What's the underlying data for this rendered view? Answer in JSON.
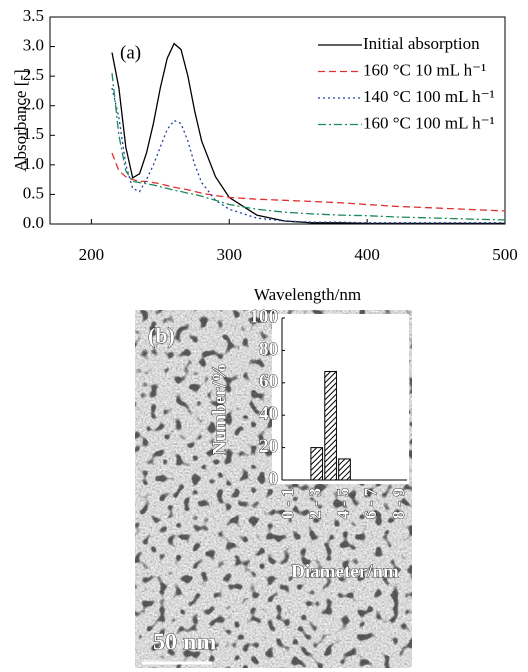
{
  "chart_data": [
    {
      "type": "line",
      "panel_label": "(a)",
      "xlabel": "Wavelength/nm",
      "ylabel": "Absorbance [-]",
      "x": [
        215,
        220,
        225,
        230,
        235,
        240,
        245,
        250,
        255,
        260,
        265,
        270,
        275,
        280,
        290,
        300,
        320,
        340,
        360,
        380,
        400,
        420,
        450,
        480,
        500
      ],
      "series": [
        {
          "name": "Initial absorption",
          "color": "#000000",
          "linestyle": "solid",
          "values": [
            2.9,
            2.3,
            1.3,
            0.78,
            0.85,
            1.2,
            1.7,
            2.3,
            2.8,
            3.05,
            2.95,
            2.5,
            1.9,
            1.4,
            0.8,
            0.45,
            0.15,
            0.05,
            0.02,
            0.02,
            0.01,
            0.01,
            0.01,
            0.01,
            0.01
          ]
        },
        {
          "name": "160 °C  10 mL h⁻¹",
          "color": "#e03030",
          "linestyle": "dashed",
          "values": [
            1.2,
            0.9,
            0.8,
            0.75,
            0.72,
            0.72,
            0.7,
            0.68,
            0.65,
            0.62,
            0.6,
            0.58,
            0.55,
            0.52,
            0.48,
            0.45,
            0.42,
            0.4,
            0.38,
            0.36,
            0.33,
            0.3,
            0.27,
            0.24,
            0.22
          ]
        },
        {
          "name": "140 °C  100 mL h⁻¹",
          "color": "#1f3fa0",
          "linestyle": "dotted",
          "values": [
            2.3,
            1.8,
            1.0,
            0.6,
            0.55,
            0.75,
            1.0,
            1.3,
            1.6,
            1.75,
            1.7,
            1.4,
            1.0,
            0.7,
            0.4,
            0.25,
            0.1,
            0.05,
            0.03,
            0.03,
            0.02,
            0.02,
            0.02,
            0.02,
            0.02
          ]
        },
        {
          "name": "160 °C  100 mL h⁻¹",
          "color": "#1a8a5a",
          "linestyle": "dashdot",
          "values": [
            2.55,
            1.5,
            0.9,
            0.72,
            0.7,
            0.68,
            0.66,
            0.63,
            0.6,
            0.57,
            0.55,
            0.52,
            0.5,
            0.47,
            0.4,
            0.33,
            0.25,
            0.2,
            0.17,
            0.15,
            0.14,
            0.12,
            0.1,
            0.08,
            0.07
          ]
        }
      ],
      "xlim": [
        170,
        500
      ],
      "xticks": [
        200,
        300,
        400,
        500
      ],
      "ylim": [
        0,
        3.5
      ],
      "yticks": [
        {
          "value": 0,
          "label": "0.0"
        },
        0.5,
        {
          "value": 1,
          "label": "1.0"
        },
        1.5,
        {
          "value": 2,
          "label": "2.0"
        },
        2.5,
        {
          "value": 3,
          "label": "3.0"
        },
        3.5
      ],
      "legend": "upper right"
    },
    {
      "type": "bar",
      "panel_label": "(b)",
      "scale_bar": "50 nm",
      "xlabel": "Diameter/nm",
      "ylabel": "Number/%",
      "categories": [
        "0 - 1",
        null,
        "2 - 3",
        null,
        "4 - 5",
        null,
        "6 - 7",
        null,
        "8 - 9"
      ],
      "values": [
        0,
        0,
        20,
        67,
        13,
        0,
        0,
        0,
        0
      ],
      "color": "hatched",
      "ylim": [
        0,
        100
      ],
      "yticks": [
        0,
        20,
        40,
        60,
        80,
        100
      ]
    }
  ]
}
